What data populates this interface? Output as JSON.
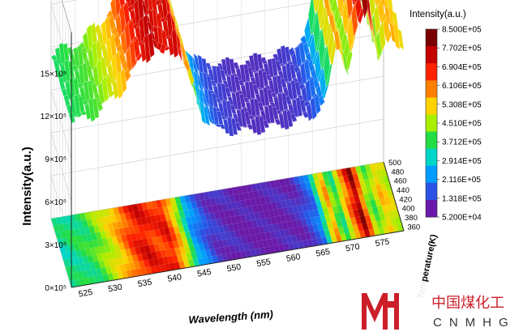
{
  "chart_data": {
    "type": "surface3d",
    "title": "",
    "xlabel": "Wavelength (nm)",
    "ylabel": "Intensity(a.u.)",
    "zlabel": "Temperature(K)",
    "x_ticks": [
      "525",
      "530",
      "535",
      "540",
      "545",
      "550",
      "555",
      "560",
      "565",
      "570",
      "575"
    ],
    "y_ticks": [
      "0×10⁵",
      "3×10⁵",
      "6×10⁵",
      "9×10⁵",
      "12×10⁵",
      "15×10⁵"
    ],
    "temperature_ticks": [
      "360",
      "380",
      "400",
      "420",
      "440",
      "460",
      "480",
      "500"
    ],
    "xlim": [
      522,
      578
    ],
    "ylim": [
      0,
      1700000
    ],
    "temperature_range": [
      350,
      500
    ],
    "colorbar": {
      "title": "Intensity(a.u.)",
      "labels": [
        "8.500E+05",
        "7.702E+05",
        "6.904E+05",
        "6.106E+05",
        "5.308E+05",
        "4.510E+05",
        "3.712E+05",
        "2.914E+05",
        "2.116E+05",
        "1.318E+05",
        "5.200E+04"
      ],
      "colors": [
        "#7a0000",
        "#c40000",
        "#ff2200",
        "#ff7f00",
        "#ffd300",
        "#a8ef00",
        "#22dd44",
        "#00d6c8",
        "#009cff",
        "#2a52e6",
        "#6a1aa8"
      ]
    },
    "series": [
      {
        "values": [
          {
            "wavelength": 522,
            "intensity": 1150000
          },
          {
            "wavelength": 527,
            "intensity": 1200000
          },
          {
            "wavelength": 531,
            "intensity": 1350000
          },
          {
            "wavelength": 534,
            "intensity": 1520000
          },
          {
            "wavelength": 536,
            "intensity": 1580000
          },
          {
            "wavelength": 538,
            "intensity": 1520000
          },
          {
            "wavelength": 540,
            "intensity": 1560000
          },
          {
            "wavelength": 542,
            "intensity": 1350000
          },
          {
            "wavelength": 544,
            "intensity": 1050000
          },
          {
            "wavelength": 547,
            "intensity": 920000
          },
          {
            "wavelength": 552,
            "intensity": 880000
          },
          {
            "wavelength": 557,
            "intensity": 880000
          },
          {
            "wavelength": 562,
            "intensity": 900000
          },
          {
            "wavelength": 565,
            "intensity": 1000000
          },
          {
            "wavelength": 567,
            "intensity": 1450000
          },
          {
            "wavelength": 568.5,
            "intensity": 1150000
          },
          {
            "wavelength": 570,
            "intensity": 1400000
          },
          {
            "wavelength": 572,
            "intensity": 1650000
          },
          {
            "wavelength": 574,
            "intensity": 1200000
          },
          {
            "wavelength": 576,
            "intensity": 1380000
          },
          {
            "wavelength": 578,
            "intensity": 1300000
          }
        ]
      }
    ]
  },
  "watermark": {
    "text_cn": "中国煤化工",
    "text_en": "CNMHG",
    "color": "#cc1f2a"
  }
}
